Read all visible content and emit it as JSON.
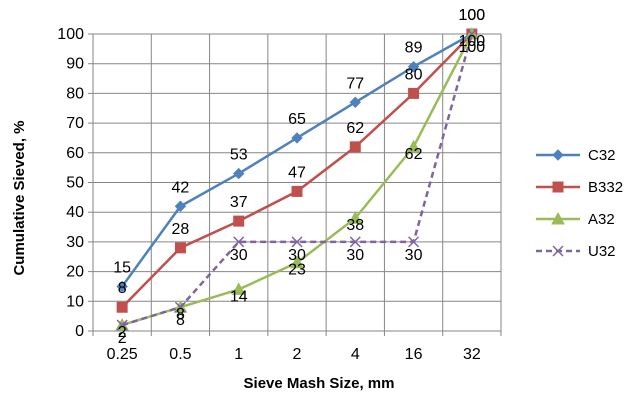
{
  "chart_data": {
    "type": "line",
    "categories": [
      "0.25",
      "0.5",
      "1",
      "2",
      "4",
      "16",
      "32"
    ],
    "xlabel": "Sieve Mash Size, mm",
    "ylabel": "Cumulative Sieved, %",
    "ylim": [
      0,
      100
    ],
    "yticks": [
      0,
      10,
      20,
      30,
      40,
      50,
      60,
      70,
      80,
      90,
      100
    ],
    "grid": true,
    "legend": "right",
    "series": [
      {
        "name": "C32",
        "values": [
          15,
          42,
          53,
          65,
          77,
          89,
          100
        ],
        "color": "#4F81BD",
        "marker": "diamond",
        "dash": "solid"
      },
      {
        "name": "B332",
        "values": [
          8,
          28,
          37,
          47,
          62,
          80,
          100
        ],
        "color": "#C0504D",
        "marker": "square",
        "dash": "solid"
      },
      {
        "name": "A32",
        "values": [
          2,
          8,
          14,
          23,
          38,
          62,
          100
        ],
        "color": "#9BBB59",
        "marker": "triangle",
        "dash": "solid"
      },
      {
        "name": "U32",
        "values": [
          2,
          8,
          30,
          30,
          30,
          30,
          100
        ],
        "color": "#8064A2",
        "marker": "x",
        "dash": "dashed"
      }
    ]
  }
}
